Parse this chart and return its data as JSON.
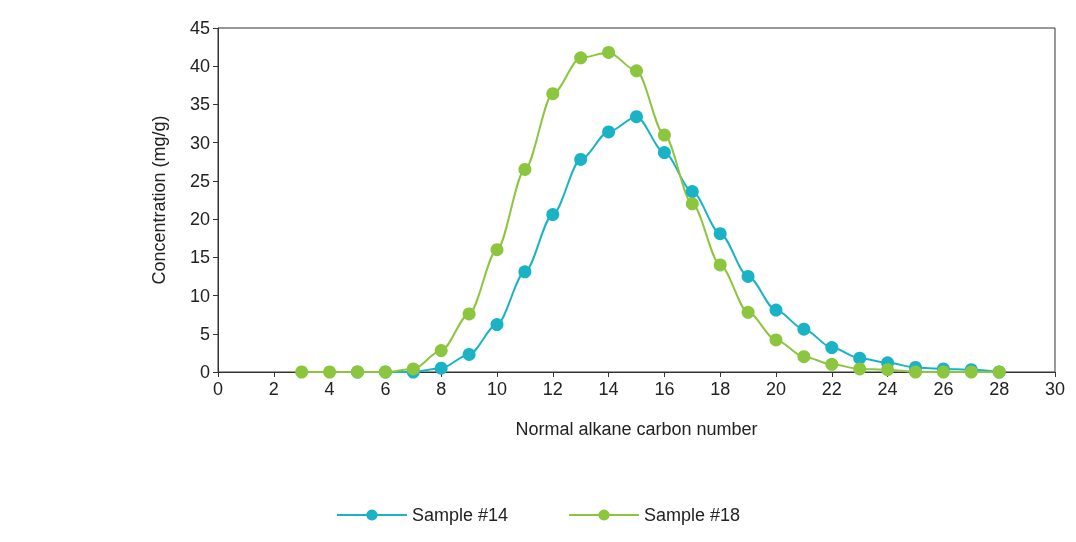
{
  "chart_data": {
    "type": "line",
    "xlabel": "Normal alkane carbon number",
    "ylabel": "Concentration (mg/g)",
    "x": [
      3,
      4,
      5,
      6,
      7,
      8,
      9,
      10,
      11,
      12,
      13,
      14,
      15,
      16,
      17,
      18,
      19,
      20,
      21,
      22,
      23,
      24,
      25,
      26,
      27,
      28
    ],
    "series": [
      {
        "name": "Sample #14",
        "color": "#1ab3c6",
        "values": [
          null,
          null,
          0,
          0,
          0,
          0.5,
          2.3,
          6.2,
          13.1,
          20.6,
          27.8,
          31.4,
          33.4,
          28.7,
          23.6,
          18.1,
          12.5,
          8.1,
          5.6,
          3.2,
          1.8,
          1.2,
          0.6,
          0.4,
          0.3,
          0
        ]
      },
      {
        "name": "Sample #18",
        "color": "#8cc63f",
        "values": [
          0,
          0,
          0,
          0,
          0.4,
          2.8,
          7.6,
          16,
          26.5,
          36.4,
          41.1,
          41.8,
          39.4,
          31,
          22,
          14,
          7.8,
          4.2,
          2,
          1,
          0.4,
          0.3,
          0,
          0,
          0,
          0
        ]
      }
    ],
    "xlim": [
      0,
      30
    ],
    "xticks": [
      0,
      2,
      4,
      6,
      8,
      10,
      12,
      14,
      16,
      18,
      20,
      22,
      24,
      26,
      28,
      30
    ],
    "ylim": [
      0,
      45
    ],
    "yticks": [
      0,
      5,
      10,
      15,
      20,
      25,
      30,
      35,
      40,
      45
    ],
    "grid": false,
    "legend": "bottom",
    "marker": "circle",
    "line_style": "solid"
  }
}
